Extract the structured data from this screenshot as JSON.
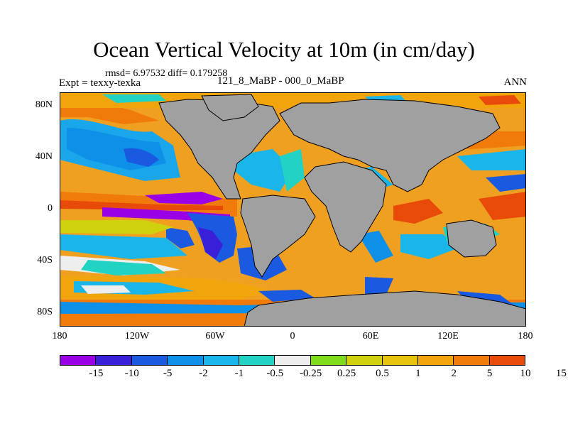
{
  "header": {
    "title": "Ocean Vertical Velocity at 10m (in cm/day)",
    "stats": "rmsd= 6.97532 diff= 0.179258",
    "expt": "Expt = texxy-texka",
    "cases": "121_8_MaBP - 000_0_MaBP",
    "season": "ANN"
  },
  "axes": {
    "lat_labels": [
      "80N",
      "40N",
      "0",
      "40S",
      "80S"
    ],
    "lon_labels": [
      "180",
      "120W",
      "60W",
      "0",
      "60E",
      "120E",
      "180"
    ]
  },
  "colorbar": {
    "colors": [
      "#9900e6",
      "#3a1fd9",
      "#1a5ae0",
      "#0f90e8",
      "#1ab6ea",
      "#22d3c4",
      "#eeeeee",
      "#7fdc1c",
      "#cfd10c",
      "#e6c30c",
      "#f2a40c",
      "#f07a0a",
      "#e84a0a"
    ],
    "labels": [
      "-15",
      "-10",
      "-5",
      "-2",
      "-1",
      "-0.5",
      "-0.25",
      "0.25",
      "0.5",
      "1",
      "2",
      "5",
      "10",
      "15"
    ]
  },
  "map": {
    "land_color": "#a0a0a0",
    "background_color": "#f0a020"
  }
}
